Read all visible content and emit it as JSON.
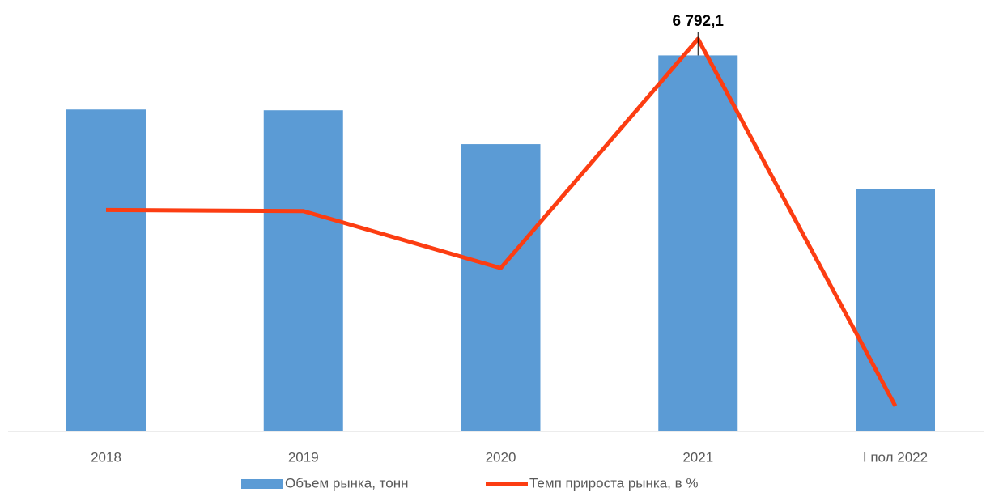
{
  "chart_data": {
    "type": "bar",
    "categories": [
      "2018",
      "2019",
      "2020",
      "2021",
      "I пол 2022"
    ],
    "series": [
      {
        "name": "Объем рынка, тонн",
        "type": "bar",
        "color": "#5b9bd5",
        "values": [
          5815,
          5801,
          5189,
          6792.1,
          4373
        ],
        "value_labels": [
          null,
          null,
          null,
          "6 792,1",
          null
        ]
      },
      {
        "name": "Темп прироста рынка, в %",
        "type": "line",
        "axis": "y2",
        "color": "#fc3d12",
        "values": [
          0,
          -0.2,
          -10.5,
          30.9,
          -35.4
        ]
      }
    ],
    "ylim": [
      0,
      7500
    ],
    "y2lim": [
      -40,
      35
    ],
    "grid": false,
    "legend": "bottom"
  }
}
